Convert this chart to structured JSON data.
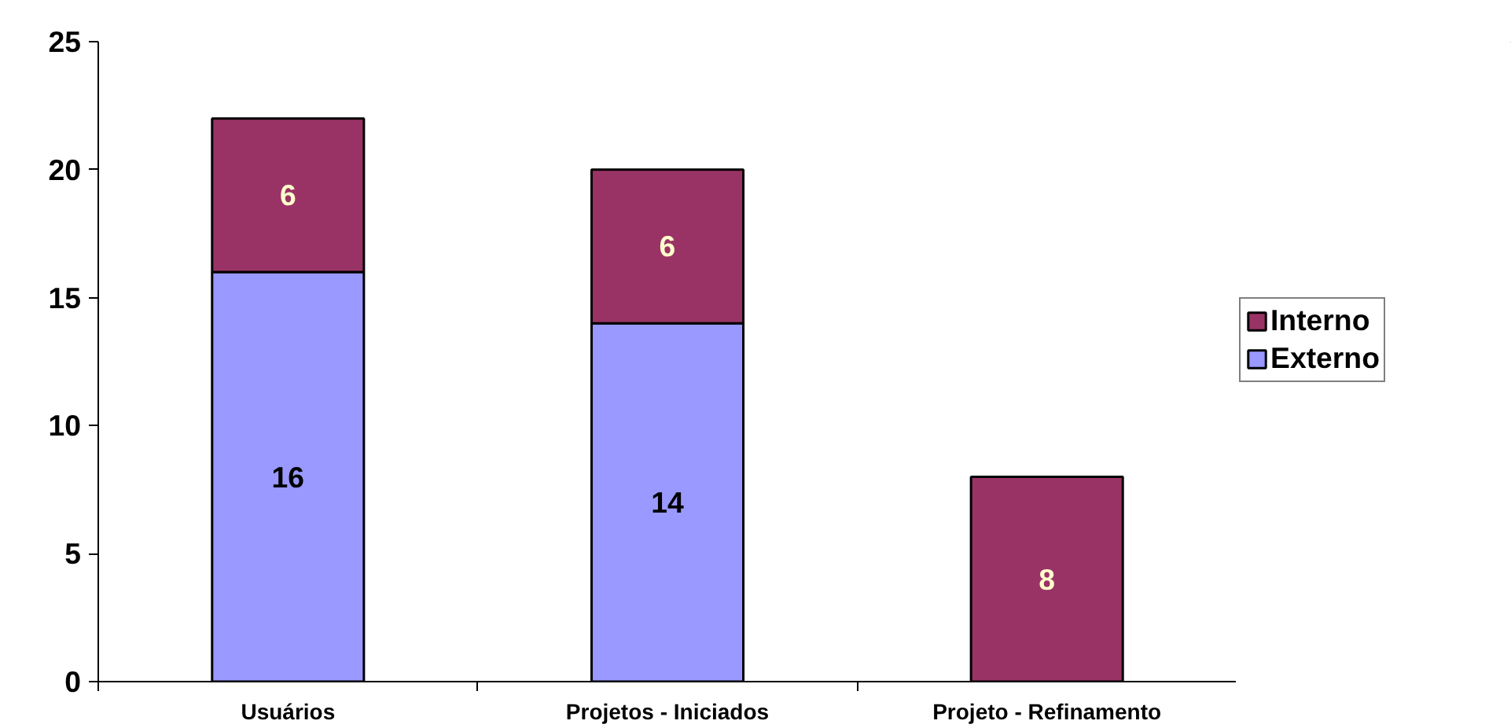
{
  "chart_data": {
    "type": "bar",
    "stacked": true,
    "categories": [
      "Usuários",
      "Projetos - Iniciados",
      "Projeto - Refinamento"
    ],
    "series": [
      {
        "name": "Externo",
        "color": "#9999ff",
        "values": [
          16,
          14,
          null
        ]
      },
      {
        "name": "Interno",
        "color": "#993366",
        "values": [
          6,
          6,
          8
        ]
      }
    ],
    "ylim": [
      0,
      25
    ],
    "yticks": [
      0,
      5,
      10,
      15,
      20,
      25
    ],
    "data_labels": true,
    "grid": false,
    "legend": "right"
  }
}
